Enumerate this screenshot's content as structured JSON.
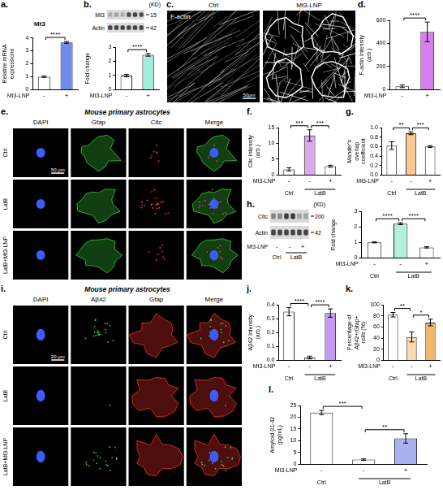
{
  "chart_data": [
    {
      "panel": "a.",
      "type": "bar",
      "title": "Mt3",
      "y_label": "Relative mRNA expressions",
      "row_label": "Mt3-LNP",
      "categories": [
        "-",
        "+"
      ],
      "values": [
        1.0,
        3.65
      ],
      "errors": [
        0.05,
        0.07
      ],
      "colors": [
        "#ffffff",
        "#6f8df0"
      ],
      "ylim": [
        0,
        4
      ],
      "yticks": [
        0,
        1,
        2,
        3,
        4
      ],
      "significance": [
        {
          "from": 0,
          "to": 1,
          "label": "****"
        }
      ]
    },
    {
      "type": "bar",
      "y_label": "Fold change",
      "row_label": "Mt3-LNP",
      "categories": [
        "-",
        "+"
      ],
      "values": [
        1.0,
        2.45
      ],
      "errors": [
        0.08,
        0.09
      ],
      "colors": [
        "#ffffff",
        "#a3eedb"
      ],
      "ylim": [
        0,
        3
      ],
      "yticks": [
        0,
        1,
        2,
        3
      ],
      "significance": [
        {
          "from": 0,
          "to": 1,
          "label": "****"
        }
      ]
    },
    {
      "panel": "d.",
      "type": "bar",
      "y_label": "F-actin Intensity (arb.)",
      "row_label": "Mt3-LNP",
      "categories": [
        "-",
        "+"
      ],
      "values": [
        30,
        500
      ],
      "errors": [
        12,
        85
      ],
      "colors": [
        "#ffffff",
        "#d77ff0"
      ],
      "ylim": [
        0,
        600
      ],
      "yticks": [
        0,
        200,
        400,
        600
      ],
      "significance": [
        {
          "from": 0,
          "to": 1,
          "label": "****"
        }
      ]
    },
    {
      "panel": "f.",
      "type": "bar",
      "y_label": "Cltc Intensity (arb.)",
      "row_label": "Mt3-LNP",
      "categories": [
        "-",
        "-",
        "+"
      ],
      "groups": [
        "Ctrl",
        "LatB",
        "LatB"
      ],
      "values": [
        1.8,
        12.5,
        2.8
      ],
      "errors": [
        0.5,
        1.8,
        0.3
      ],
      "colors": [
        "#ffffff",
        "#dba8ec",
        "#ffffff"
      ],
      "ylim": [
        0,
        15
      ],
      "yticks": [
        0,
        5,
        10,
        15
      ],
      "significance": [
        {
          "from": 0,
          "to": 1,
          "label": "***"
        },
        {
          "from": 1,
          "to": 2,
          "label": "***"
        }
      ]
    },
    {
      "panel": "g.",
      "type": "bar",
      "y_label": "Mander's overlap coefficient",
      "row_label": "Mt3-LNP",
      "categories": [
        "-",
        "-",
        "+"
      ],
      "groups": [
        "Ctrl",
        "LatB",
        "LatB"
      ],
      "values": [
        0.62,
        0.88,
        0.6
      ],
      "errors": [
        0.08,
        0.03,
        0.02
      ],
      "colors": [
        "#ffffff",
        "#f9c98f",
        "#ffffff"
      ],
      "ylim": [
        0,
        1
      ],
      "yticks": [
        {
          "value": 0,
          "label": "0.0"
        },
        {
          "value": 0.2,
          "label": "0.2"
        },
        {
          "value": 0.4,
          "label": "0.4"
        },
        {
          "value": 0.6,
          "label": "0.6"
        },
        {
          "value": 0.8,
          "label": "0.8"
        },
        {
          "value": 1,
          "label": "1.0"
        }
      ],
      "significance": [
        {
          "from": 0,
          "to": 1,
          "label": "**"
        },
        {
          "from": 1,
          "to": 2,
          "label": "***"
        }
      ]
    },
    {
      "type": "bar",
      "y_label": "Fold change",
      "row_label": "Mt3-LNP",
      "categories": [
        "-",
        "-",
        "+"
      ],
      "groups": [
        "Ctrl",
        "LatB",
        "LatB"
      ],
      "values": [
        1.0,
        2.2,
        0.68
      ],
      "errors": [
        0.03,
        0.06,
        0.04
      ],
      "colors": [
        "#ffffff",
        "#b5f0dc",
        "#ffffff"
      ],
      "ylim": [
        0,
        3
      ],
      "yticks": [
        0,
        1,
        2,
        3
      ],
      "significance": [
        {
          "from": 0,
          "to": 1,
          "label": "****"
        },
        {
          "from": 1,
          "to": 2,
          "label": "****"
        }
      ]
    },
    {
      "panel": "j.",
      "type": "bar",
      "y_label": "Aβ42 Intensity (arb.)",
      "row_label": "Mt3-LNP",
      "categories": [
        "-",
        "-",
        "+"
      ],
      "groups": [
        "Ctrl",
        "LatB",
        "LatB"
      ],
      "values": [
        0.35,
        0.02,
        0.34
      ],
      "errors": [
        0.03,
        0.01,
        0.03
      ],
      "colors": [
        "#ffffff",
        "#ffffff",
        "#c49bf0"
      ],
      "ylim": [
        0,
        0.4
      ],
      "yticks": [
        {
          "value": 0,
          "label": "0.0"
        },
        {
          "value": 0.1,
          "label": "0.1"
        },
        {
          "value": 0.2,
          "label": "0.2"
        },
        {
          "value": 0.3,
          "label": "0.3"
        },
        {
          "value": 0.4,
          "label": "0.4"
        }
      ],
      "significance": [
        {
          "from": 0,
          "to": 1,
          "label": "****"
        },
        {
          "from": 1,
          "to": 2,
          "label": "****"
        }
      ]
    },
    {
      "panel": "k.",
      "type": "bar",
      "y_label": "Percentage of Aβ42+/Gfap+ cells (%)",
      "row_label": "Mt3-LNP",
      "categories": [
        "-",
        "-",
        "+"
      ],
      "groups": [
        "Ctrl",
        "LatB",
        "LatB"
      ],
      "values": [
        82,
        42,
        68
      ],
      "errors": [
        4,
        9,
        6
      ],
      "colors": [
        "#ffffff",
        "#fcdab2",
        "#f3b866"
      ],
      "ylim": [
        0,
        100
      ],
      "yticks": [
        0,
        20,
        40,
        60,
        80,
        100
      ],
      "significance": [
        {
          "from": 0,
          "to": 1,
          "label": "**"
        },
        {
          "from": 1,
          "to": 2,
          "label": "*"
        }
      ]
    },
    {
      "panel": "l.",
      "type": "bar",
      "y_label": "Amyloid β1-42 (pg/mL)",
      "row_label": "Mt3-LNP",
      "categories": [
        "-",
        "-",
        "+"
      ],
      "groups": [
        "Ctrl",
        "LatB",
        "LatB"
      ],
      "values": [
        22,
        2,
        11
      ],
      "errors": [
        0.9,
        0.3,
        2.0
      ],
      "colors": [
        "#ffffff",
        "#ffffff",
        "#a9b1f1"
      ],
      "ylim": [
        0,
        25
      ],
      "yticks": [
        0,
        5,
        10,
        15,
        20,
        25
      ],
      "significance": [
        {
          "from": 0,
          "to": 1,
          "label": "***"
        },
        {
          "from": 1,
          "to": 2,
          "label": "**"
        }
      ]
    }
  ],
  "blots": [
    {
      "panel": "b.",
      "unit": "(KD)",
      "bands": [
        {
          "name": "Mt3",
          "size": 15
        },
        {
          "name": "Actin",
          "size": 42
        }
      ]
    },
    {
      "panel": "h.",
      "unit": "(KD)",
      "bands": [
        {
          "name": "Cltc",
          "size": 200
        },
        {
          "name": "Actin",
          "size": 42
        }
      ],
      "row_label": "Mt3-LNP",
      "lanes": [
        "-",
        "-",
        "+"
      ],
      "groups": [
        "Ctrl",
        "LatB",
        "LatB"
      ]
    }
  ],
  "images": [
    {
      "panel": "c.",
      "columns": [
        "Ctrl",
        "Mt3-LNP"
      ],
      "stain": "F-actin",
      "scale_bar": "50μm"
    },
    {
      "panel": "e.",
      "title": "Mouse primary astrocytes",
      "columns": [
        "DAPI",
        "Gfap",
        "Cltc",
        "Merge"
      ],
      "rows": [
        "Ctrl",
        "LatB",
        "LatB+Mt3-LNP"
      ],
      "scale_bar": "50 μm"
    },
    {
      "panel": "i.",
      "title": "Mouse primary astrocytes",
      "columns": [
        "DAPI",
        "Aβ42",
        "Gfap",
        "Merge"
      ],
      "rows": [
        "Ctrl",
        "LatB",
        "LatB+Mt3-LNP"
      ],
      "scale_bar": "20 μm"
    }
  ]
}
